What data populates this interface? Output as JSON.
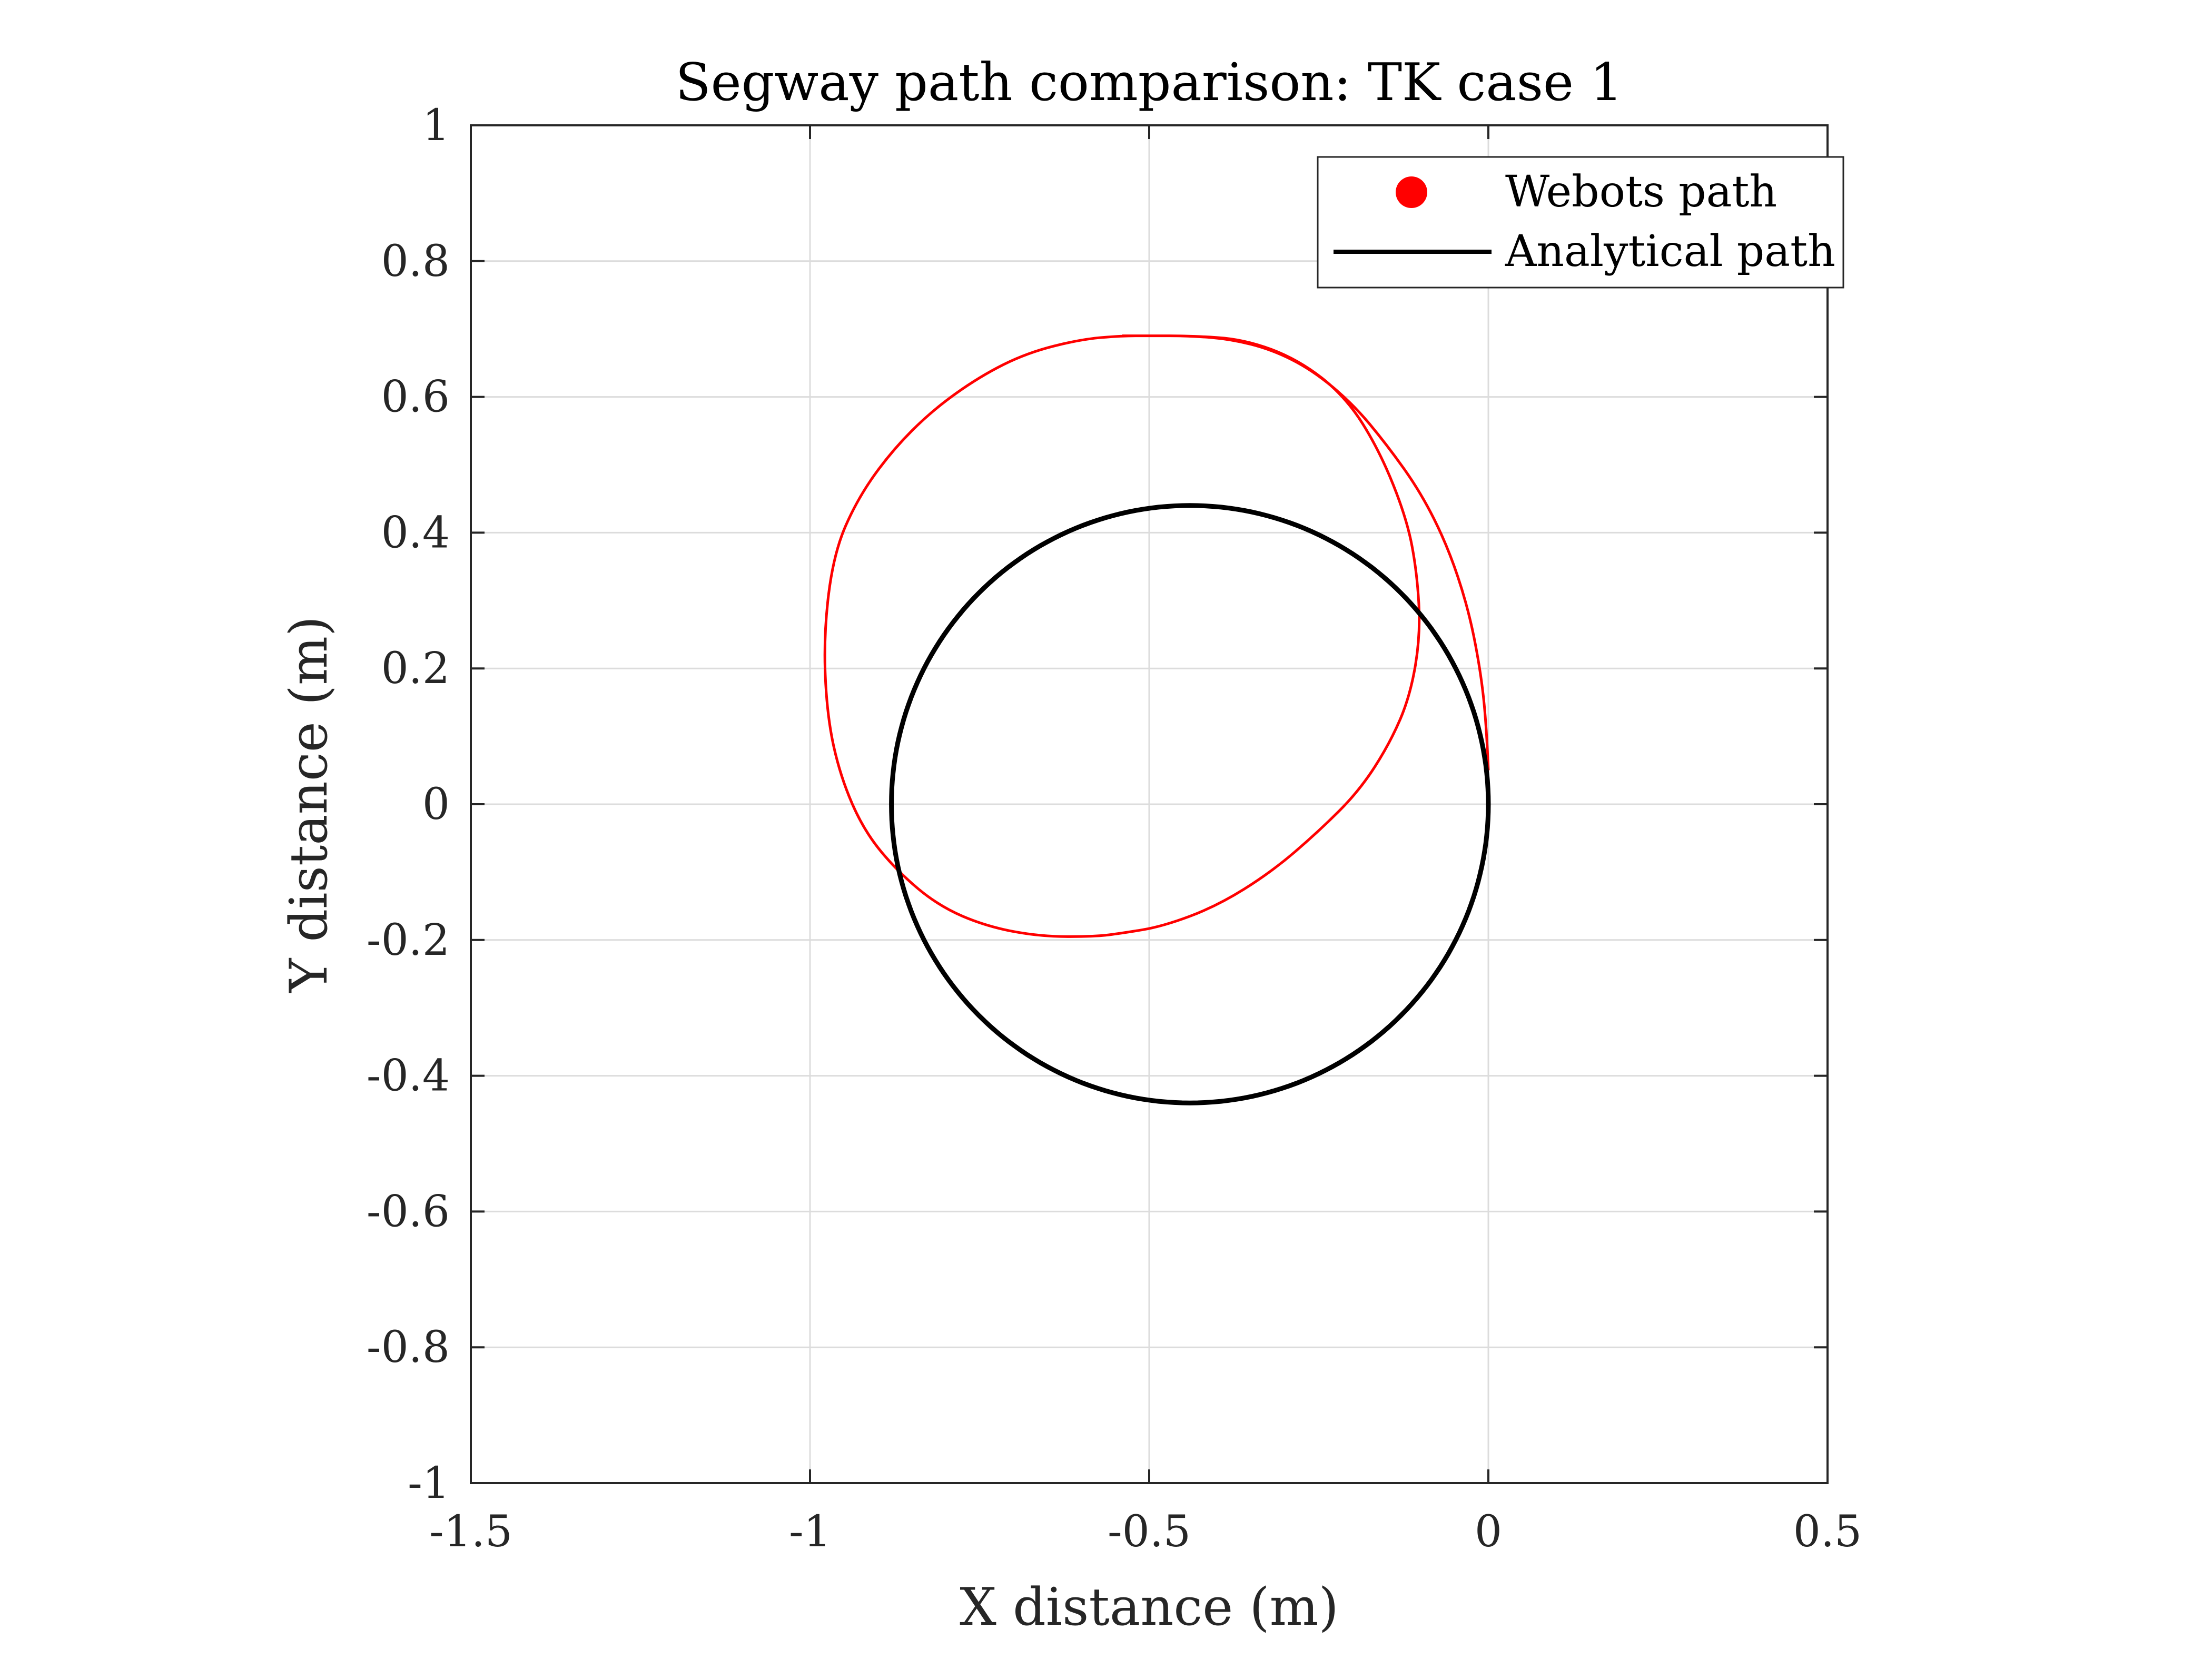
{
  "chart_data": {
    "type": "line",
    "title": "Segway path comparison: TK case 1",
    "xlabel": "X distance (m)",
    "ylabel": "Y distance (m)",
    "xlim": [
      -1.5,
      0.5
    ],
    "ylim": [
      -1,
      1
    ],
    "xticks": [
      -1.5,
      -1,
      -0.5,
      0,
      0.5
    ],
    "xtick_labels": [
      "-1.5",
      "-1",
      "-0.5",
      "0",
      "0.5"
    ],
    "yticks": [
      -1,
      -0.8,
      -0.6,
      -0.4,
      -0.2,
      0,
      0.2,
      0.4,
      0.6,
      0.8,
      1
    ],
    "ytick_labels": [
      "-1",
      "-0.8",
      "-0.6",
      "-0.4",
      "-0.2",
      "0",
      "0.2",
      "0.4",
      "0.6",
      "0.8",
      "1"
    ],
    "grid": true,
    "legend_position": "top-right",
    "series": [
      {
        "name": "Webots path",
        "color": "#ff0000",
        "marker": "filled-circle",
        "x": [
          0.0,
          -0.003,
          -0.012,
          -0.03,
          -0.06,
          -0.1,
          -0.15,
          -0.2,
          -0.26,
          -0.32,
          -0.38,
          -0.44,
          -0.5,
          -0.54,
          -0.6,
          -0.68,
          -0.75,
          -0.82,
          -0.88,
          -0.93,
          -0.965,
          -0.98,
          -0.975,
          -0.955,
          -0.92,
          -0.87,
          -0.81,
          -0.74,
          -0.66,
          -0.58,
          -0.54,
          -0.48,
          -0.4,
          -0.32,
          -0.25,
          -0.19,
          -0.145,
          -0.115,
          -0.1,
          -0.105,
          -0.12,
          -0.16,
          -0.21,
          -0.28,
          -0.36,
          -0.44,
          -0.5,
          -0.54
        ],
        "y": [
          0.05,
          0.12,
          0.2,
          0.29,
          0.38,
          0.46,
          0.53,
          0.59,
          0.64,
          0.67,
          0.685,
          0.69,
          0.69,
          0.69,
          0.685,
          0.665,
          0.63,
          0.58,
          0.52,
          0.45,
          0.37,
          0.25,
          0.13,
          0.04,
          -0.04,
          -0.1,
          -0.15,
          -0.18,
          -0.195,
          -0.195,
          -0.19,
          -0.18,
          -0.15,
          -0.1,
          -0.04,
          0.02,
          0.09,
          0.16,
          0.25,
          0.34,
          0.42,
          0.52,
          0.6,
          0.655,
          0.685,
          0.69,
          0.69,
          0.69
        ]
      },
      {
        "name": "Analytical path",
        "color": "#000000",
        "center": [
          -0.44,
          0.0
        ],
        "radius": 0.44
      }
    ]
  }
}
